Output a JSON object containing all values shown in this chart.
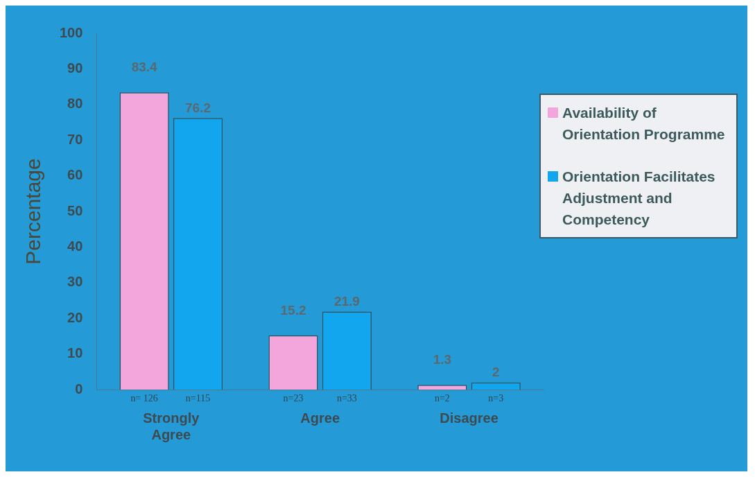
{
  "chart_data": {
    "type": "bar",
    "ylabel": "Percentage",
    "categories": [
      "Strongly Agree",
      "Agree",
      "Disagree"
    ],
    "series": [
      {
        "name": "Availability of Orientation Programme",
        "color": "#f2a6dc",
        "values": [
          83.4,
          15.2,
          1.3
        ]
      },
      {
        "name": "Orientation Facilitates Adjustment and Competency",
        "color": "#12a6ee",
        "values": [
          76.2,
          21.9,
          2
        ]
      }
    ],
    "ylim": [
      0,
      100
    ],
    "yticks": [
      0,
      10,
      20,
      30,
      40,
      50,
      60,
      70,
      80,
      90,
      100
    ],
    "grid": false,
    "legend": "right",
    "data_labels": true,
    "annotations": [
      "n= 126",
      "n=115",
      "n=23",
      "n=33",
      "n=2",
      "n=3"
    ]
  }
}
